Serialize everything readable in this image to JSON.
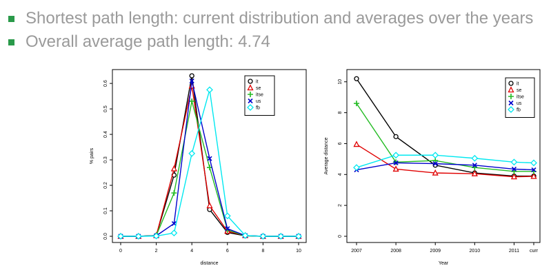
{
  "bullets": [
    {
      "text": "Shortest path length: current distribution and averages over the years"
    },
    {
      "text": "Overall average path length: 4.74"
    }
  ],
  "bullet_color": "#2a9a4a",
  "chart_data": [
    {
      "type": "line",
      "xlabel": "distance",
      "ylabel": "% pairs",
      "xlim": [
        0,
        10
      ],
      "ylim": [
        0,
        0.63
      ],
      "xticks": [
        0,
        2,
        4,
        6,
        8,
        10
      ],
      "yticks": [
        0.0,
        0.1,
        0.2,
        0.3,
        0.4,
        0.5,
        0.6
      ],
      "legend": "top-right",
      "x": [
        0,
        1,
        2,
        3,
        4,
        5,
        6,
        7,
        8,
        9,
        10
      ],
      "series": [
        {
          "name": "it",
          "color": "#000000",
          "marker": "circle",
          "values": [
            0,
            0,
            0.003,
            0.24,
            0.63,
            0.105,
            0.015,
            0.002,
            0,
            0,
            0
          ]
        },
        {
          "name": "se",
          "color": "#e00000",
          "marker": "triangle",
          "values": [
            0,
            0,
            0.003,
            0.265,
            0.59,
            0.12,
            0.02,
            0.003,
            0,
            0,
            0
          ]
        },
        {
          "name": "itse",
          "color": "#22bb22",
          "marker": "plus",
          "values": [
            0,
            0,
            0.003,
            0.17,
            0.53,
            0.27,
            0.025,
            0.002,
            0,
            0,
            0
          ]
        },
        {
          "name": "us",
          "color": "#0000cc",
          "marker": "cross",
          "values": [
            0,
            0,
            0.002,
            0.05,
            0.61,
            0.305,
            0.03,
            0.003,
            0,
            0,
            0
          ]
        },
        {
          "name": "fb",
          "color": "#00e8f0",
          "marker": "diamond",
          "values": [
            0,
            0,
            0.001,
            0.013,
            0.325,
            0.575,
            0.08,
            0.003,
            0,
            0,
            0
          ]
        }
      ]
    },
    {
      "type": "line",
      "xlabel": "Year",
      "ylabel": "Average distance",
      "ylim": [
        0,
        10.3
      ],
      "yticks": [
        0,
        2,
        4,
        6,
        8,
        10
      ],
      "legend": "top-right",
      "categories": [
        "2007",
        "2008",
        "2009",
        "2010",
        "2011",
        "curr"
      ],
      "x": [
        2007,
        2008,
        2009,
        2010,
        2011,
        2011.5
      ],
      "xlim": [
        2007,
        2011.5
      ],
      "series": [
        {
          "name": "it",
          "color": "#000000",
          "marker": "circle",
          "values": [
            10.2,
            6.45,
            4.6,
            4.1,
            3.9,
            3.9
          ]
        },
        {
          "name": "se",
          "color": "#e00000",
          "marker": "triangle",
          "values": [
            5.95,
            4.35,
            4.1,
            4.05,
            3.85,
            3.88
          ]
        },
        {
          "name": "itse",
          "color": "#22bb22",
          "marker": "plus",
          "values": [
            8.6,
            4.8,
            4.9,
            4.45,
            4.2,
            4.2
          ]
        },
        {
          "name": "us",
          "color": "#0000cc",
          "marker": "cross",
          "values": [
            4.3,
            4.75,
            4.7,
            4.6,
            4.35,
            4.3
          ]
        },
        {
          "name": "fb",
          "color": "#00e8f0",
          "marker": "diamond",
          "values": [
            4.45,
            5.25,
            5.25,
            5.05,
            4.8,
            4.75
          ]
        }
      ]
    }
  ]
}
